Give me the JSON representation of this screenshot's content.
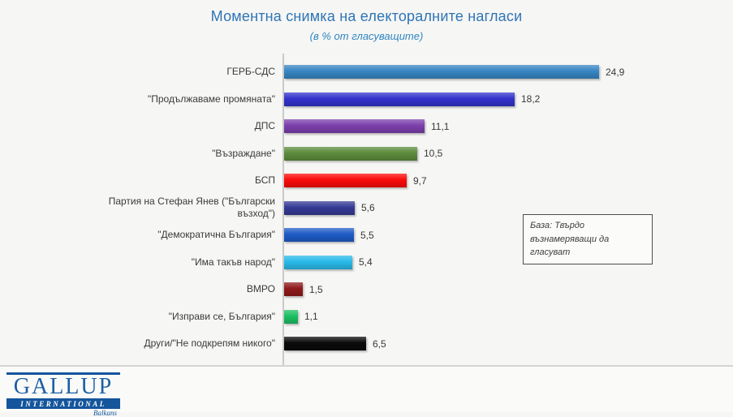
{
  "title": "Моментна снимка на електоралните нагласи",
  "subtitle": "(в % от гласуващите)",
  "annotation": {
    "text": "База: Твърдо възнамеряващи да гласуват"
  },
  "chart_data": {
    "type": "bar",
    "orientation": "horizontal",
    "title": "Моментна снимка на електоралните нагласи",
    "subtitle": "(в % от гласуващите)",
    "categories": [
      "ГЕРБ-СДС",
      "\"Продължаваме промяната\"",
      "ДПС",
      "\"Възраждане\"",
      "БСП",
      "Партия на Стефан Янев (\"Български възход\")",
      "\"Демократична България\"",
      "\"Има такъв народ\"",
      "ВМРО",
      "\"Изправи се, България\"",
      "Други/\"Не подкрепям никого\""
    ],
    "values": [
      24.9,
      18.2,
      11.1,
      10.5,
      9.7,
      5.6,
      5.5,
      5.4,
      1.5,
      1.1,
      6.5
    ],
    "value_labels": [
      "24,9",
      "18,2",
      "11,1",
      "10,5",
      "9,7",
      "5,6",
      "5,5",
      "5,4",
      "1,5",
      "1,1",
      "6,5"
    ],
    "bar_colors": [
      "#3786C3",
      "#3333CC",
      "#7C3FAC",
      "#5C8B3C",
      "#FB0A0A",
      "#343A94",
      "#1E5BC6",
      "#29B9E9",
      "#8F191B",
      "#1BBF62",
      "#0A0A0A"
    ],
    "xlim": [
      0,
      25
    ],
    "grid": false,
    "legend": "none",
    "data_labels": "outside-end",
    "base_note": "База: Твърдо възнамеряващи да гласуват"
  },
  "logo": {
    "name": "GALLUP",
    "subname": "INTERNATIONAL",
    "region": "Balkans"
  },
  "colors": {
    "title_blue": "#2E75B6",
    "subtitle_blue": "#2E86C1",
    "axis_line": "#C9C9C7",
    "text": "#3A3A3A",
    "logo_blue": "#14559C",
    "background": "#F6F6F4"
  }
}
